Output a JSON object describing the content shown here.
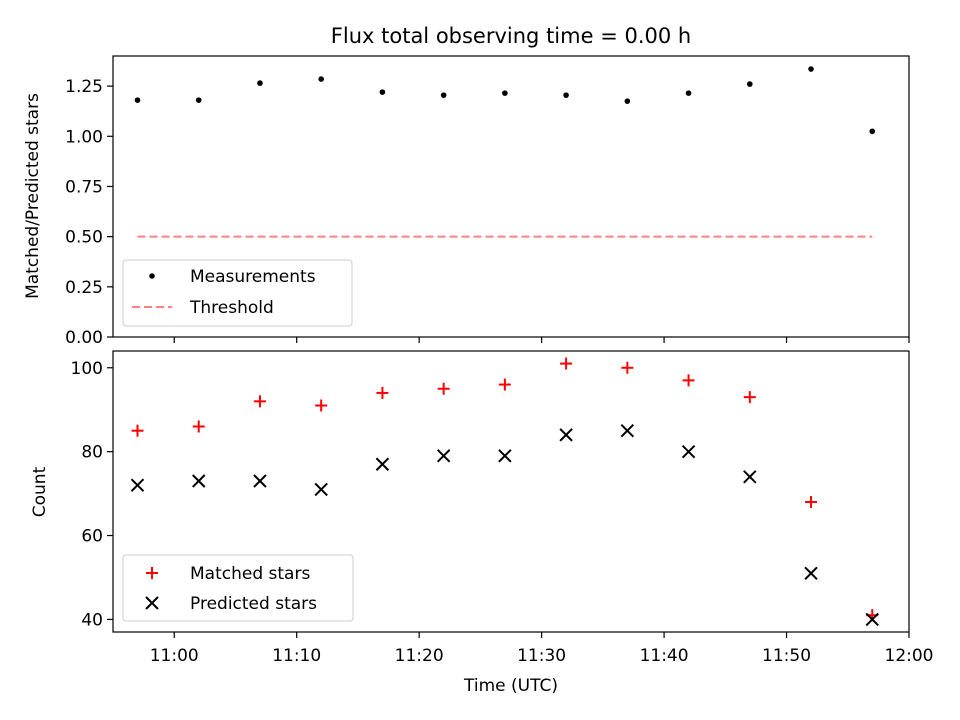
{
  "chart_data": [
    {
      "type": "scatter",
      "title": "Flux total observing time = 0.00 h",
      "ylabel": "Matched/Predicted stars",
      "xlabel": "",
      "xlim": [
        "10:55",
        "12:00"
      ],
      "ylim": [
        0,
        1.4
      ],
      "yticks": [
        0.0,
        0.25,
        0.5,
        0.75,
        1.0,
        1.25
      ],
      "ytick_labels": [
        "0.00",
        "0.25",
        "0.50",
        "0.75",
        "1.00",
        "1.25"
      ],
      "legend_position": "lower-left",
      "series": [
        {
          "name": "Measurements",
          "marker": "dot",
          "color": "#000000",
          "x": [
            "10:57",
            "11:02",
            "11:07",
            "11:12",
            "11:17",
            "11:22",
            "11:27",
            "11:32",
            "11:37",
            "11:42",
            "11:47",
            "11:52",
            "11:57"
          ],
          "y": [
            1.18,
            1.18,
            1.265,
            1.285,
            1.22,
            1.205,
            1.215,
            1.205,
            1.175,
            1.215,
            1.26,
            1.335,
            1.025
          ]
        },
        {
          "name": "Threshold",
          "style": "dashed-line",
          "color": "#ff7f7f",
          "x": [
            "10:57",
            "11:57"
          ],
          "y": [
            0.5,
            0.5
          ]
        }
      ]
    },
    {
      "type": "scatter",
      "title": "",
      "xlabel": "Time (UTC)",
      "ylabel": "Count",
      "xlim": [
        "10:55",
        "12:00"
      ],
      "ylim": [
        37,
        104
      ],
      "xticks": [
        "11:00",
        "11:10",
        "11:20",
        "11:30",
        "11:40",
        "11:50",
        "12:00"
      ],
      "yticks": [
        40,
        60,
        80,
        100
      ],
      "ytick_labels": [
        "40",
        "60",
        "80",
        "100"
      ],
      "legend_position": "lower-left",
      "series": [
        {
          "name": "Matched stars",
          "marker": "plus",
          "color": "#ff0000",
          "x": [
            "10:57",
            "11:02",
            "11:07",
            "11:12",
            "11:17",
            "11:22",
            "11:27",
            "11:32",
            "11:37",
            "11:42",
            "11:47",
            "11:52",
            "11:57"
          ],
          "y": [
            85,
            86,
            92,
            91,
            94,
            95,
            96,
            101,
            100,
            97,
            93,
            68,
            41
          ]
        },
        {
          "name": "Predicted stars",
          "marker": "x",
          "color": "#000000",
          "x": [
            "10:57",
            "11:02",
            "11:07",
            "11:12",
            "11:17",
            "11:22",
            "11:27",
            "11:32",
            "11:37",
            "11:42",
            "11:47",
            "11:52",
            "11:57"
          ],
          "y": [
            72,
            73,
            73,
            71,
            77,
            79,
            79,
            84,
            85,
            80,
            74,
            51,
            40
          ]
        }
      ]
    }
  ]
}
